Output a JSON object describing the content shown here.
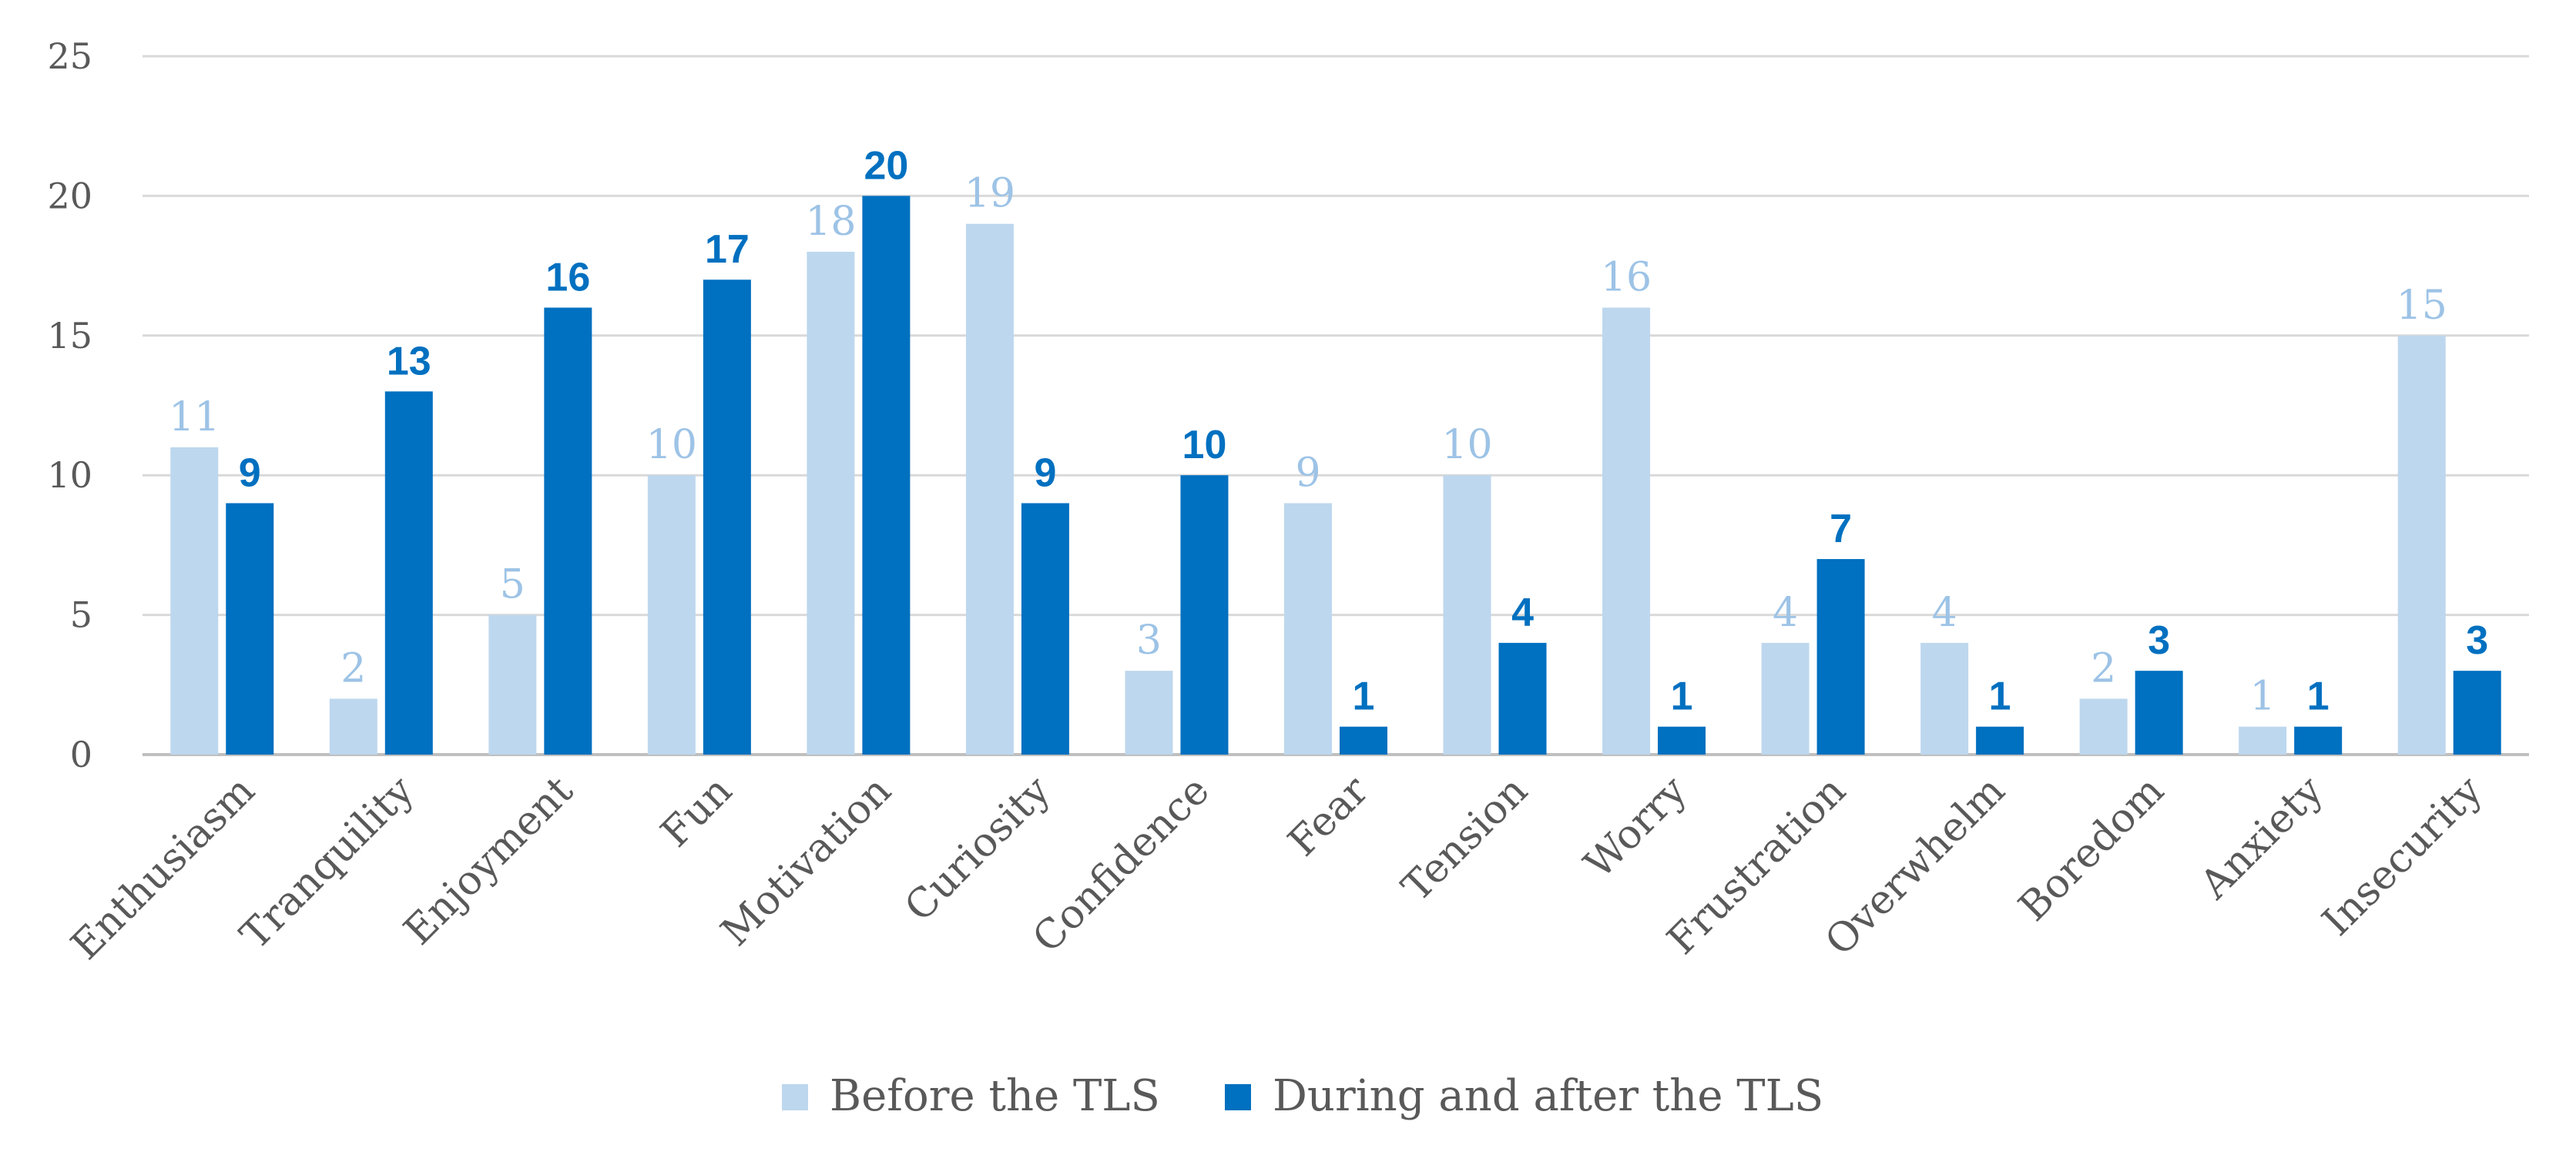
{
  "chart_data": {
    "type": "bar",
    "title": "",
    "xlabel": "",
    "ylabel": "",
    "ylim": [
      0,
      25
    ],
    "yticks": [
      0,
      5,
      10,
      15,
      20,
      25
    ],
    "grid": true,
    "legend_position": "bottom-center",
    "categories": [
      "Enthusiasm",
      "Tranquility",
      "Enjoyment",
      "Fun",
      "Motivation",
      "Curiosity",
      "Confidence",
      "Fear",
      "Tension",
      "Worry",
      "Frustration",
      "Overwhelm",
      "Boredom",
      "Anxiety",
      "Insecurity"
    ],
    "series": [
      {
        "name": "Before the TLS",
        "color": "#BDD7EE",
        "label_color": "#9DC3E6",
        "values": [
          11,
          2,
          5,
          10,
          18,
          19,
          3,
          9,
          10,
          16,
          4,
          4,
          2,
          1,
          15
        ]
      },
      {
        "name": "During and after the TLS",
        "color": "#0070C0",
        "label_color": "#0070C0",
        "values": [
          9,
          13,
          16,
          17,
          20,
          9,
          10,
          1,
          4,
          1,
          7,
          1,
          3,
          1,
          3
        ]
      }
    ]
  }
}
